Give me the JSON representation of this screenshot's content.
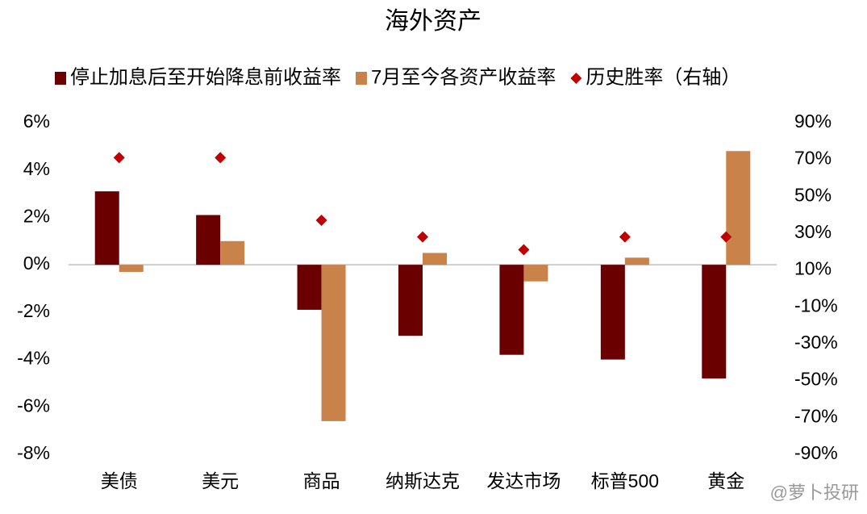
{
  "chart_data": {
    "type": "bar",
    "title": "海外资产",
    "categories": [
      "美债",
      "美元",
      "商品",
      "纳斯达克",
      "发达市场",
      "标普500",
      "黄金"
    ],
    "series": [
      {
        "name": "停止加息后至开始降息前收益率",
        "color": "#6b0000",
        "values": [
          3.1,
          2.1,
          -1.9,
          -3.0,
          -3.8,
          -4.0,
          -4.8
        ]
      },
      {
        "name": "7月至今各资产收益率",
        "color": "#c8824a",
        "values": [
          -0.3,
          1.0,
          -6.6,
          0.5,
          -0.7,
          0.3,
          4.8
        ]
      },
      {
        "name": "历史胜率（右轴）",
        "color": "#c00000",
        "type": "scatter",
        "axis": "y2",
        "values": [
          71,
          71,
          37,
          28,
          21,
          28,
          28
        ]
      }
    ],
    "ylim": [
      -8,
      6
    ],
    "yticks": [
      {
        "value": 6,
        "label": "6%"
      },
      {
        "value": 4,
        "label": "4%"
      },
      {
        "value": 2,
        "label": "2%"
      },
      {
        "value": 0,
        "label": "0%"
      },
      {
        "value": -2,
        "label": "-2%"
      },
      {
        "value": -4,
        "label": "-4%"
      },
      {
        "value": -6,
        "label": "-6%"
      },
      {
        "value": -8,
        "label": "-8%"
      }
    ],
    "y2lim": [
      -90,
      90
    ],
    "y2ticks": [
      {
        "value": 90,
        "label": "90%"
      },
      {
        "value": 70,
        "label": "70%"
      },
      {
        "value": 50,
        "label": "50%"
      },
      {
        "value": 30,
        "label": "30%"
      },
      {
        "value": 10,
        "label": "10%"
      },
      {
        "value": -10,
        "label": "-10%"
      },
      {
        "value": -30,
        "label": "-30%"
      },
      {
        "value": -50,
        "label": "-50%"
      },
      {
        "value": -70,
        "label": "-70%"
      },
      {
        "value": -90,
        "label": "-90%"
      }
    ],
    "grid": false,
    "legend": "top",
    "watermark": "@萝卜投研"
  }
}
